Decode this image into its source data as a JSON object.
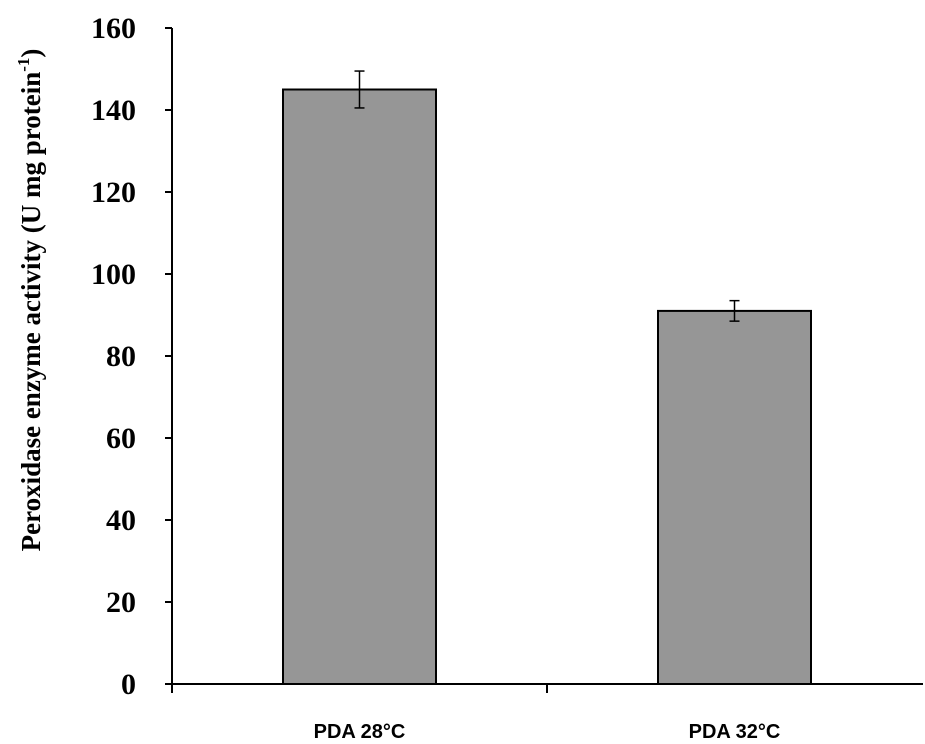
{
  "chart_data": {
    "type": "bar",
    "categories": [
      "PDA 28°C",
      "PDA 32°C"
    ],
    "values": [
      145,
      91
    ],
    "error": [
      4.5,
      2.5
    ],
    "ylim": [
      0,
      160
    ],
    "yticks": [
      "0",
      "20",
      "40",
      "60",
      "80",
      "100",
      "120",
      "140",
      "160"
    ],
    "ylabel": {
      "main": "Peroxidase enzyme activity  (U mg protein",
      "sup": "-1",
      "end": ")"
    },
    "xlabel": "",
    "title": "",
    "grid": false,
    "bar_color": "#969696",
    "bar_edge_color": "#000000"
  }
}
